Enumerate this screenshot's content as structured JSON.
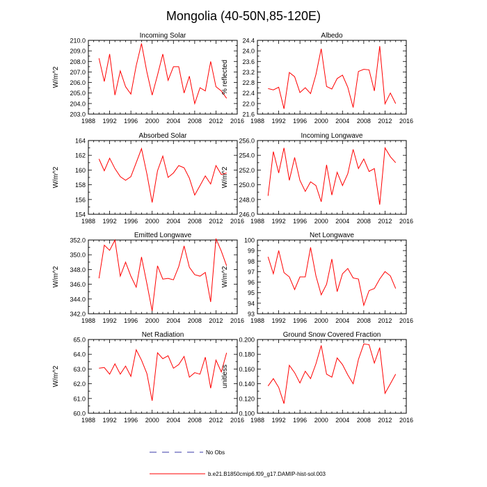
{
  "title": "Mongolia (40-50N,85-120E)",
  "colors": {
    "series": "#ff0000",
    "no_obs": "#3a3aa8",
    "axis": "#000000"
  },
  "legend": [
    {
      "label": "No Obs",
      "style": "dashed",
      "color": "#3a3aa8"
    },
    {
      "label": "b.e21.B1850cmip6.f09_g17.DAMIP-hist-sol.003",
      "style": "solid",
      "color": "#ff0000"
    }
  ],
  "chart_data": [
    {
      "type": "line",
      "title": "Incoming Solar",
      "xlabel": "",
      "ylabel": "W/m^2",
      "xlim": [
        1988,
        2016
      ],
      "xticks": [
        "1988",
        "1992",
        "1996",
        "2000",
        "2004",
        "2008",
        "2012",
        "2016"
      ],
      "ylim": [
        203,
        210
      ],
      "yticks": [
        "203.0",
        "204.0",
        "205.0",
        "206.0",
        "207.0",
        "208.0",
        "209.0",
        "210.0"
      ],
      "x": [
        1990,
        1991,
        1992,
        1993,
        1994,
        1995,
        1996,
        1997,
        1998,
        1999,
        2000,
        2001,
        2002,
        2003,
        2004,
        2005,
        2006,
        2007,
        2008,
        2009,
        2010,
        2011,
        2012,
        2013,
        2014
      ],
      "series": [
        {
          "name": "b.e21.B1850cmip6.f09_g17.DAMIP-hist-sol.003",
          "values": [
            208.3,
            206.1,
            208.7,
            204.8,
            207.1,
            205.6,
            204.9,
            207.6,
            209.7,
            207.0,
            204.8,
            206.7,
            208.7,
            206.2,
            207.5,
            207.5,
            205.0,
            206.6,
            204.0,
            205.5,
            205.2,
            208.0,
            205.6,
            205.2,
            204.5
          ]
        }
      ]
    },
    {
      "type": "line",
      "title": "Albedo",
      "xlabel": "",
      "ylabel": "% reflected",
      "xlim": [
        1988,
        2016
      ],
      "xticks": [
        "1988",
        "1992",
        "1996",
        "2000",
        "2004",
        "2008",
        "2012",
        "2016"
      ],
      "ylim": [
        21.6,
        24.4
      ],
      "yticks": [
        "21.6",
        "22.0",
        "22.4",
        "22.8",
        "23.2",
        "23.6",
        "24.0",
        "24.4"
      ],
      "x": [
        1990,
        1991,
        1992,
        1993,
        1994,
        1995,
        1996,
        1997,
        1998,
        1999,
        2000,
        2001,
        2002,
        2003,
        2004,
        2005,
        2006,
        2007,
        2008,
        2009,
        2010,
        2011,
        2012,
        2013,
        2014
      ],
      "series": [
        {
          "name": "b.e21.B1850cmip6.f09_g17.DAMIP-hist-sol.003",
          "values": [
            22.57,
            22.52,
            22.62,
            21.8,
            23.18,
            23.02,
            22.42,
            22.6,
            22.38,
            23.1,
            24.08,
            22.65,
            22.55,
            22.95,
            23.08,
            22.62,
            21.85,
            23.22,
            23.3,
            23.28,
            22.48,
            24.18,
            21.99,
            22.4,
            22.0
          ]
        }
      ]
    },
    {
      "type": "line",
      "title": "Absorbed Solar",
      "xlabel": "",
      "ylabel": "W/m^2",
      "xlim": [
        1988,
        2016
      ],
      "xticks": [
        "1988",
        "1992",
        "1996",
        "2000",
        "2004",
        "2008",
        "2012",
        "2016"
      ],
      "ylim": [
        154,
        164
      ],
      "yticks": [
        "154",
        "156",
        "158",
        "160",
        "162",
        "164"
      ],
      "x": [
        1990,
        1991,
        1992,
        1993,
        1994,
        1995,
        1996,
        1997,
        1998,
        1999,
        2000,
        2001,
        2002,
        2003,
        2004,
        2005,
        2006,
        2007,
        2008,
        2009,
        2010,
        2011,
        2012,
        2013,
        2014
      ],
      "series": [
        {
          "name": "b.e21.B1850cmip6.f09_g17.DAMIP-hist-sol.003",
          "values": [
            161.5,
            159.9,
            161.6,
            160.2,
            159.1,
            158.6,
            159.1,
            161.0,
            162.9,
            159.5,
            155.6,
            159.9,
            161.9,
            159.0,
            159.6,
            160.6,
            160.3,
            158.9,
            156.6,
            157.9,
            159.2,
            158.1,
            160.6,
            159.4,
            159.6
          ]
        }
      ]
    },
    {
      "type": "line",
      "title": "Incoming Longwave",
      "xlabel": "",
      "ylabel": "W/m^2",
      "xlim": [
        1988,
        2016
      ],
      "xticks": [
        "1988",
        "1992",
        "1996",
        "2000",
        "2004",
        "2008",
        "2012",
        "2016"
      ],
      "ylim": [
        246,
        256
      ],
      "yticks": [
        "246.0",
        "248.0",
        "250.0",
        "252.0",
        "254.0",
        "256.0"
      ],
      "x": [
        1990,
        1991,
        1992,
        1993,
        1994,
        1995,
        1996,
        1997,
        1998,
        1999,
        2000,
        2001,
        2002,
        2003,
        2004,
        2005,
        2006,
        2007,
        2008,
        2009,
        2010,
        2011,
        2012,
        2013,
        2014
      ],
      "series": [
        {
          "name": "b.e21.B1850cmip6.f09_g17.DAMIP-hist-sol.003",
          "values": [
            248.5,
            254.5,
            251.6,
            255.0,
            250.6,
            253.7,
            250.6,
            249.1,
            250.4,
            249.9,
            247.7,
            252.7,
            248.6,
            251.7,
            249.9,
            251.5,
            254.8,
            252.2,
            253.5,
            251.8,
            252.2,
            247.3,
            255.0,
            253.8,
            253.0
          ]
        }
      ]
    },
    {
      "type": "line",
      "title": "Emitted Longwave",
      "xlabel": "",
      "ylabel": "W/m^2",
      "xlim": [
        1988,
        2016
      ],
      "xticks": [
        "1988",
        "1992",
        "1996",
        "2000",
        "2004",
        "2008",
        "2012",
        "2016"
      ],
      "ylim": [
        342,
        352
      ],
      "yticks": [
        "342.0",
        "344.0",
        "346.0",
        "348.0",
        "350.0",
        "352.0"
      ],
      "x": [
        1990,
        1991,
        1992,
        1993,
        1994,
        1995,
        1996,
        1997,
        1998,
        1999,
        2000,
        2001,
        2002,
        2003,
        2004,
        2005,
        2006,
        2007,
        2008,
        2009,
        2010,
        2011,
        2012,
        2013,
        2014
      ],
      "series": [
        {
          "name": "b.e21.B1850cmip6.f09_g17.DAMIP-hist-sol.003",
          "values": [
            346.8,
            351.3,
            350.6,
            352.0,
            347.1,
            349.0,
            347.1,
            345.6,
            349.7,
            346.1,
            342.4,
            348.5,
            346.7,
            346.8,
            346.6,
            348.4,
            351.2,
            348.3,
            347.3,
            347.1,
            347.6,
            343.6,
            352.2,
            350.5,
            348.5
          ]
        }
      ]
    },
    {
      "type": "line",
      "title": "Net Longwave",
      "xlabel": "",
      "ylabel": "W/m^2",
      "xlim": [
        1988,
        2016
      ],
      "xticks": [
        "1988",
        "1992",
        "1996",
        "2000",
        "2004",
        "2008",
        "2012",
        "2016"
      ],
      "ylim": [
        93,
        100
      ],
      "yticks": [
        "93",
        "94",
        "95",
        "96",
        "97",
        "98",
        "99",
        "100"
      ],
      "x": [
        1990,
        1991,
        1992,
        1993,
        1994,
        1995,
        1996,
        1997,
        1998,
        1999,
        2000,
        2001,
        2002,
        2003,
        2004,
        2005,
        2006,
        2007,
        2008,
        2009,
        2010,
        2011,
        2012,
        2013,
        2014
      ],
      "series": [
        {
          "name": "b.e21.B1850cmip6.f09_g17.DAMIP-hist-sol.003",
          "values": [
            98.4,
            96.8,
            99.0,
            96.9,
            96.5,
            95.3,
            96.5,
            96.5,
            99.3,
            96.6,
            94.8,
            95.8,
            98.2,
            95.1,
            96.8,
            97.3,
            96.4,
            96.3,
            93.8,
            95.2,
            95.4,
            96.3,
            97.0,
            96.6,
            95.4
          ]
        }
      ]
    },
    {
      "type": "line",
      "title": "Net Radiation",
      "xlabel": "",
      "ylabel": "W/m^2",
      "xlim": [
        1988,
        2016
      ],
      "xticks": [
        "1988",
        "1992",
        "1996",
        "2000",
        "2004",
        "2008",
        "2012",
        "2016"
      ],
      "ylim": [
        60,
        65
      ],
      "yticks": [
        "60.0",
        "61.0",
        "62.0",
        "63.0",
        "64.0",
        "65.0"
      ],
      "x": [
        1990,
        1991,
        1992,
        1993,
        1994,
        1995,
        1996,
        1997,
        1998,
        1999,
        2000,
        2001,
        2002,
        2003,
        2004,
        2005,
        2006,
        2007,
        2008,
        2009,
        2010,
        2011,
        2012,
        2013,
        2014
      ],
      "series": [
        {
          "name": "b.e21.B1850cmip6.f09_g17.DAMIP-hist-sol.003",
          "values": [
            63.05,
            63.1,
            62.65,
            63.35,
            62.65,
            63.2,
            62.5,
            64.3,
            63.6,
            62.7,
            60.85,
            64.1,
            63.7,
            63.9,
            63.05,
            63.3,
            63.85,
            62.45,
            62.75,
            62.65,
            63.8,
            61.7,
            63.6,
            62.8,
            64.1
          ]
        }
      ]
    },
    {
      "type": "line",
      "title": "Ground Snow Covered Fraction",
      "xlabel": "",
      "ylabel": "unitless",
      "xlim": [
        1988,
        2016
      ],
      "xticks": [
        "1988",
        "1992",
        "1996",
        "2000",
        "2004",
        "2008",
        "2012",
        "2016"
      ],
      "ylim": [
        0.1,
        0.2
      ],
      "yticks": [
        "0.100",
        "0.120",
        "0.140",
        "0.160",
        "0.180",
        "0.200"
      ],
      "x": [
        1990,
        1991,
        1992,
        1993,
        1994,
        1995,
        1996,
        1997,
        1998,
        1999,
        2000,
        2001,
        2002,
        2003,
        2004,
        2005,
        2006,
        2007,
        2008,
        2009,
        2010,
        2011,
        2012,
        2013,
        2014
      ],
      "series": [
        {
          "name": "b.e21.B1850cmip6.f09_g17.DAMIP-hist-sol.003",
          "values": [
            0.137,
            0.147,
            0.135,
            0.113,
            0.165,
            0.155,
            0.141,
            0.157,
            0.147,
            0.167,
            0.192,
            0.153,
            0.149,
            0.175,
            0.166,
            0.152,
            0.14,
            0.173,
            0.194,
            0.193,
            0.168,
            0.189,
            0.127,
            0.14,
            0.153
          ]
        }
      ]
    }
  ]
}
